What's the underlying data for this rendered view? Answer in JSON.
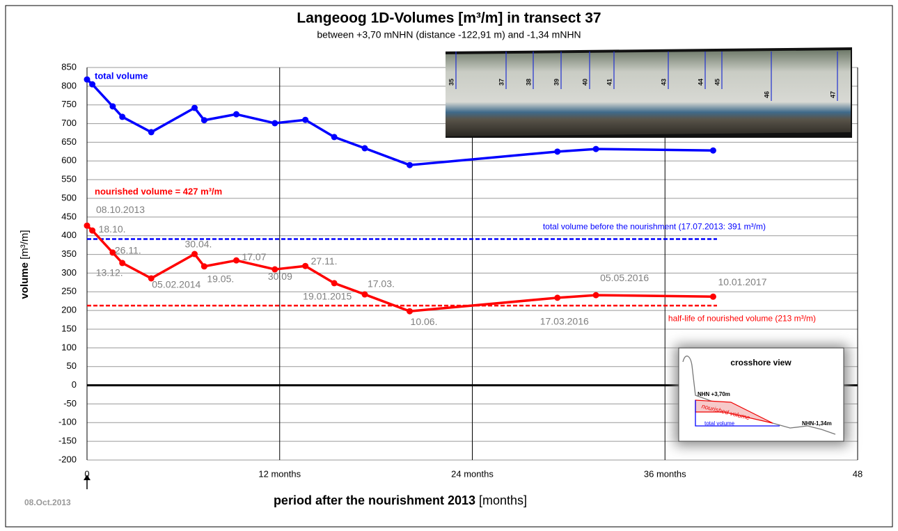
{
  "chart_data": {
    "type": "line",
    "title": "Langeoog 1D-Volumes [m³/m] in transect 37",
    "subtitle": "between +3,70 mNHN (distance -122,91 m) and -1,34 mNHN",
    "y_label": "volume",
    "y_unit": "[m³/m]",
    "x_label": "period after the nourishment 2013",
    "x_unit": "[months]",
    "start_label": "08.Oct.2013",
    "x": [
      0,
      0.33,
      1.6,
      2.2,
      4,
      6.7,
      7.3,
      9.3,
      11.7,
      13.6,
      15.4,
      17.3,
      20.1,
      29.3,
      31.7,
      39.0
    ],
    "series": [
      {
        "name": "total volume",
        "color": "#0000ff",
        "values": [
          818,
          805,
          746,
          718,
          677,
          742,
          709,
          725,
          701,
          710,
          664,
          634,
          589,
          625,
          632,
          628
        ]
      },
      {
        "name": "nourished volume = 427 m³/m",
        "color": "#ff0000",
        "values": [
          427,
          414,
          355,
          327,
          286,
          351,
          318,
          334,
          310,
          319,
          273,
          243,
          198,
          234,
          241,
          237
        ]
      }
    ],
    "point_labels": [
      "08.10.2013",
      "18.10.",
      "26.11.",
      "13.12.",
      "05.02.2014",
      "30.04.",
      "19.05.",
      "17.07",
      "30.09",
      "27.11.",
      "19.01.2015",
      "17.03.",
      "10.06.",
      "17.03.2016",
      "05.05.2016",
      "10.01.2017"
    ],
    "reference_lines": [
      {
        "value": 391,
        "color": "#0000ff",
        "label": "total volume before the nourishment (17.07.2013: 391 m³/m)"
      },
      {
        "value": 213,
        "color": "#ff0000",
        "label": "half-life of nourished volume (213 m³/m)"
      }
    ],
    "xlim": [
      0,
      48
    ],
    "xticks": [
      0,
      {
        "value": 12,
        "label": "12 months"
      },
      {
        "value": 24,
        "label": "24 months"
      },
      {
        "value": 36,
        "label": "36 months"
      },
      48
    ],
    "ylim": [
      -200,
      850
    ],
    "yticks": [
      -200,
      -150,
      -100,
      -50,
      0,
      50,
      100,
      150,
      200,
      250,
      300,
      350,
      400,
      450,
      500,
      550,
      600,
      650,
      700,
      750,
      800,
      850
    ],
    "grid": true,
    "photo_transects": [
      "35",
      "37",
      "38",
      "39",
      "40",
      "41",
      "43",
      "44",
      "45",
      "46",
      "47"
    ],
    "inset": {
      "title": "crosshore view",
      "top_label": "NHN +3,70m",
      "nourished_label": "nourished volume",
      "total_label": "total volume",
      "bottom_label": "NHN-1,34m"
    }
  }
}
